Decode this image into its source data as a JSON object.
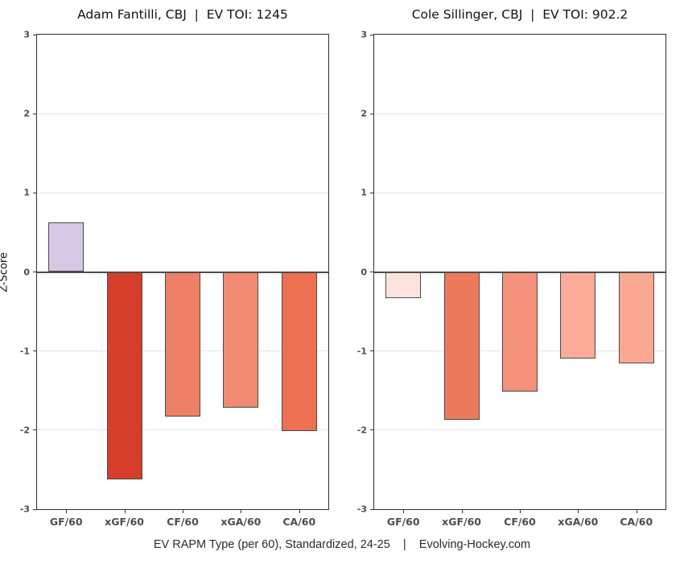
{
  "page": {
    "footer": "EV RAPM Type (per 60), Standardized, 24-25    |    Evolving-Hockey.com"
  },
  "chart_data": [
    {
      "type": "bar",
      "title": "Adam Fantilli, CBJ  |  EV TOI: 1245",
      "player": "Adam Fantilli",
      "team": "CBJ",
      "ev_toi": 1245,
      "categories": [
        "GF/60",
        "xGF/60",
        "CF/60",
        "xGA/60",
        "CA/60"
      ],
      "values": [
        0.63,
        -2.62,
        -1.83,
        -1.72,
        -2.01
      ],
      "bar_colors": [
        "#d5c9e6",
        "#d63e2a",
        "#ee8065",
        "#f08a70",
        "#ec7153"
      ],
      "xlabel": "",
      "ylabel": "Z-Score",
      "ylim": [
        -3,
        3
      ],
      "yticks": [
        3,
        2,
        1,
        0,
        -1,
        -2,
        -3
      ],
      "grid": "horizontal-major",
      "zero_line": true,
      "legend": "none"
    },
    {
      "type": "bar",
      "title": "Cole Sillinger, CBJ  |  EV TOI: 902.2",
      "player": "Cole Sillinger",
      "team": "CBJ",
      "ev_toi": 902.2,
      "categories": [
        "GF/60",
        "xGF/60",
        "CF/60",
        "xGA/60",
        "CA/60"
      ],
      "values": [
        -0.33,
        -1.87,
        -1.51,
        -1.09,
        -1.16
      ],
      "bar_colors": [
        "#fce4dc",
        "#ed7a5d",
        "#f4927b",
        "#fbab97",
        "#faa892"
      ],
      "xlabel": "",
      "ylabel": "",
      "ylim": [
        -3,
        3
      ],
      "yticks": [
        3,
        2,
        1,
        0,
        -1,
        -2,
        -3
      ],
      "grid": "horizontal-major",
      "zero_line": true,
      "legend": "none"
    }
  ]
}
